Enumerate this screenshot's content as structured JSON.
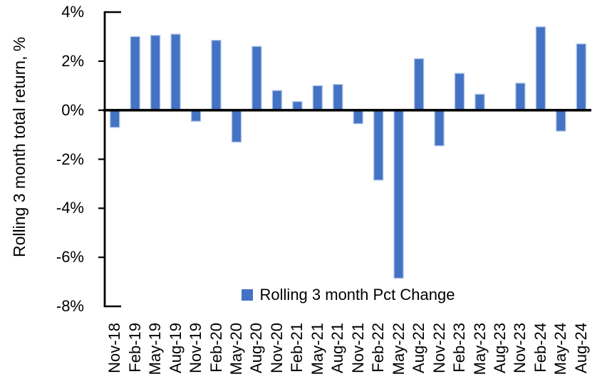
{
  "chart": {
    "y_axis_title": "Rolling 3 month total return, %",
    "legend_label": "Rolling 3 month Pct Change",
    "colors": {
      "bar_fill": "#4472C4",
      "bar_border": "#A9C2E8",
      "axis": "#000000",
      "background": "#FFFFFF"
    }
  },
  "chart_data": {
    "type": "bar",
    "title": "",
    "xlabel": "",
    "ylabel": "Rolling 3 month total return, %",
    "categories": [
      "Nov-18",
      "Feb-19",
      "May-19",
      "Aug-19",
      "Nov-19",
      "Feb-20",
      "May-20",
      "Aug-20",
      "Nov-20",
      "Feb-21",
      "May-21",
      "Aug-21",
      "Nov-21",
      "Feb-22",
      "May-22",
      "Aug-22",
      "Nov-22",
      "Feb-23",
      "May-23",
      "Aug-23",
      "Nov-23",
      "Feb-24",
      "May-24",
      "Aug-24"
    ],
    "values": [
      -0.7,
      3.0,
      3.05,
      3.1,
      -0.45,
      2.85,
      -1.3,
      2.6,
      0.8,
      0.35,
      1.0,
      1.05,
      -0.55,
      -2.85,
      -6.85,
      2.1,
      -1.45,
      1.5,
      0.65,
      0.0,
      1.1,
      3.4,
      -0.85,
      2.7
    ],
    "ylim": [
      -8,
      4
    ],
    "yticks": [
      4,
      2,
      0,
      -2,
      -4,
      -6,
      -8
    ],
    "ytick_labels": [
      "4%",
      "2%",
      "0%",
      "-2%",
      "-4%",
      "-6%",
      "-8%"
    ],
    "legend": [
      "Rolling 3 month Pct Change"
    ],
    "legend_position": "bottom-center",
    "grid": false,
    "units": "percent"
  }
}
